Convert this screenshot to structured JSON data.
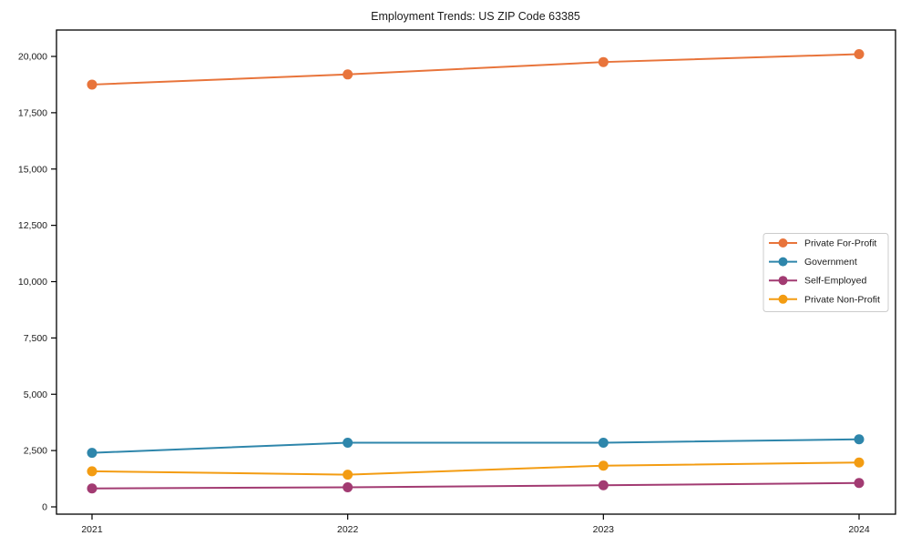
{
  "chart_data": {
    "type": "line",
    "title": "Employment Trends: US ZIP Code 63385",
    "x": [
      "2021",
      "2022",
      "2023",
      "2024"
    ],
    "series": [
      {
        "name": "Private For-Profit",
        "color": "#E8743B",
        "values": [
          18750,
          19200,
          19750,
          20100
        ]
      },
      {
        "name": "Government",
        "color": "#2E86AB",
        "values": [
          2400,
          2850,
          2850,
          3000
        ]
      },
      {
        "name": "Self-Employed",
        "color": "#A23B72",
        "values": [
          820,
          870,
          960,
          1060
        ]
      },
      {
        "name": "Private Non-Profit",
        "color": "#F39C12",
        "values": [
          1580,
          1430,
          1830,
          1970
        ]
      }
    ],
    "xlabel": "",
    "ylabel": "",
    "ylim": [
      0,
      20500
    ],
    "yticks": [
      0,
      2500,
      5000,
      7500,
      10000,
      12500,
      15000,
      17500,
      20000
    ],
    "ytick_labels": [
      "0",
      "2,500",
      "5,000",
      "7,500",
      "10,000",
      "12,500",
      "15,000",
      "17,500",
      "20,000"
    ],
    "grid": false,
    "legend_position": "center right",
    "background_color": "#ffffff",
    "spine_color": "#000000",
    "legend_border_color": "#cccccc"
  }
}
